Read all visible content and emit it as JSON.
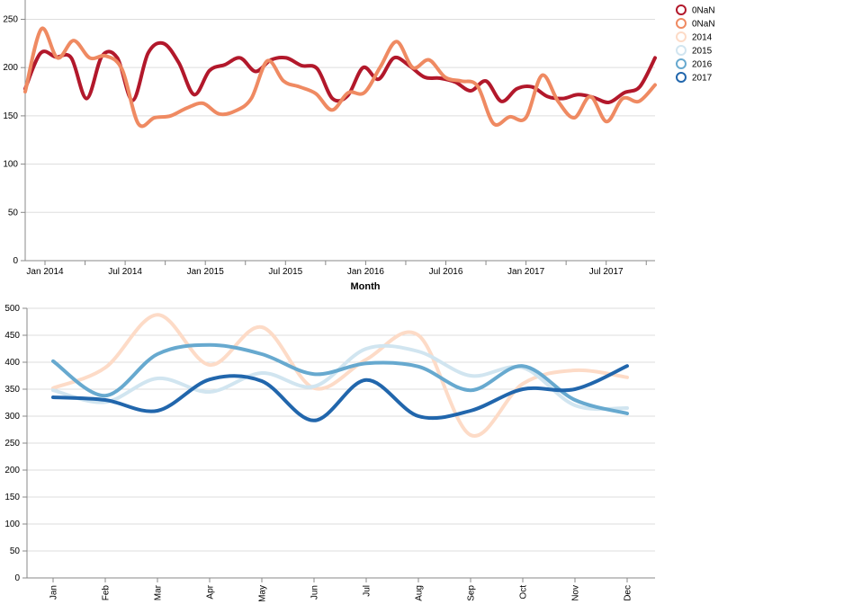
{
  "chart_data": [
    {
      "type": "line",
      "xlabel": "Month",
      "ylabel": "",
      "ylim": [
        0,
        270
      ],
      "y_ticks": [
        0,
        50,
        100,
        150,
        200,
        250
      ],
      "x_tick_labels": [
        "Jan 2014",
        "Jul 2014",
        "Jan 2015",
        "Jul 2015",
        "Jan 2016",
        "Jul 2016",
        "Jan 2017",
        "Jul 2017"
      ],
      "grid": true,
      "series": [
        {
          "name": "0NaN",
          "color": "#b2182b",
          "values": [
            178,
            215,
            211,
            210,
            168,
            212,
            210,
            166,
            215,
            225,
            205,
            172,
            197,
            203,
            210,
            196,
            208,
            210,
            202,
            199,
            168,
            171,
            200,
            188,
            210,
            202,
            190,
            189,
            185,
            176,
            186,
            165,
            178,
            180,
            170,
            168,
            172,
            169,
            164,
            174,
            180,
            210
          ]
        },
        {
          "name": "0NaN",
          "color": "#ef8a62",
          "values": [
            175,
            240,
            210,
            228,
            210,
            212,
            198,
            142,
            148,
            150,
            158,
            163,
            152,
            155,
            168,
            207,
            186,
            180,
            173,
            156,
            174,
            174,
            201,
            227,
            200,
            208,
            190,
            186,
            181,
            142,
            149,
            148,
            192,
            165,
            148,
            170,
            144,
            168,
            165,
            182
          ]
        }
      ]
    },
    {
      "type": "line",
      "xlabel": "",
      "ylabel": "",
      "ylim": [
        0,
        500
      ],
      "y_ticks": [
        0,
        50,
        100,
        150,
        200,
        250,
        300,
        350,
        400,
        450,
        500
      ],
      "categories": [
        "Jan",
        "Feb",
        "Mar",
        "Apr",
        "May",
        "Jun",
        "Jul",
        "Aug",
        "Sep",
        "Oct",
        "Nov",
        "Dec"
      ],
      "grid": true,
      "series": [
        {
          "name": "2014",
          "color": "#fddbc7",
          "values": [
            352,
            390,
            488,
            395,
            465,
            352,
            405,
            450,
            265,
            360,
            385,
            372
          ]
        },
        {
          "name": "2015",
          "color": "#d1e5f0",
          "values": [
            348,
            326,
            370,
            345,
            380,
            355,
            425,
            420,
            375,
            390,
            320,
            315
          ]
        },
        {
          "name": "2016",
          "color": "#67a9cf",
          "values": [
            402,
            338,
            415,
            432,
            415,
            378,
            398,
            392,
            348,
            393,
            330,
            305
          ]
        },
        {
          "name": "2017",
          "color": "#2166ac",
          "values": [
            335,
            330,
            310,
            368,
            365,
            292,
            367,
            300,
            310,
            350,
            350,
            393
          ]
        }
      ]
    }
  ],
  "legend": {
    "placement": "top-right",
    "items": [
      {
        "label": "0NaN",
        "color": "#b2182b"
      },
      {
        "label": "0NaN",
        "color": "#ef8a62"
      },
      {
        "label": "2014",
        "color": "#fddbc7"
      },
      {
        "label": "2015",
        "color": "#d1e5f0"
      },
      {
        "label": "2016",
        "color": "#67a9cf"
      },
      {
        "label": "2017",
        "color": "#2166ac"
      }
    ]
  }
}
